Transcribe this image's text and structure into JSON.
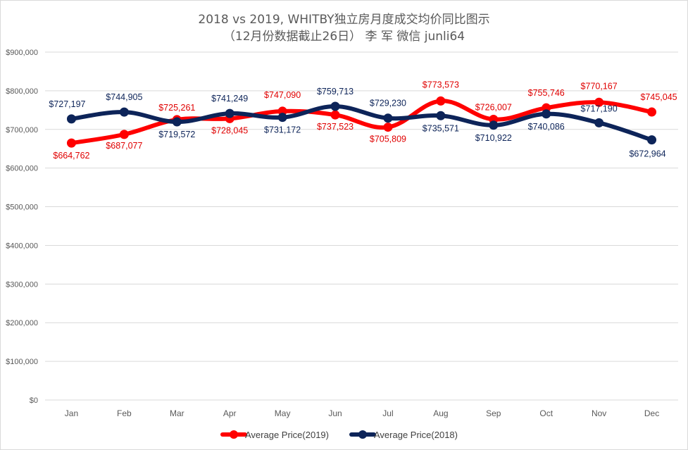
{
  "chart_data": {
    "type": "line",
    "title": "2018 vs 2019, WHITBY独立房月度成交均价同比图示",
    "subtitle": "（12月份数据截止26日） 李 军  微信 junli64",
    "categories": [
      "Jan",
      "Feb",
      "Mar",
      "Apr",
      "May",
      "Jun",
      "Jul",
      "Aug",
      "Sep",
      "Oct",
      "Nov",
      "Dec"
    ],
    "ylim": [
      0,
      900000
    ],
    "yticks": [
      0,
      100000,
      200000,
      300000,
      400000,
      500000,
      600000,
      700000,
      800000,
      900000
    ],
    "ytick_labels": [
      "$0",
      "$100,000",
      "$200,000",
      "$300,000",
      "$400,000",
      "$500,000",
      "$600,000",
      "$700,000",
      "$800,000",
      "$900,000"
    ],
    "grid": true,
    "legend_position": "bottom",
    "series": [
      {
        "name": "Average Price(2019)",
        "color": "#ff0000",
        "label_color": "#e00000",
        "values": [
          664762,
          687077,
          725261,
          728045,
          747090,
          737523,
          705809,
          773573,
          726007,
          755746,
          770167,
          745045
        ],
        "labels": [
          "$664,762",
          "$687,077",
          "$725,261",
          "$728,045",
          "$747,090",
          "$737,523",
          "$705,809",
          "$773,573",
          "$726,007",
          "$755,746",
          "$770,167",
          "$745,045"
        ]
      },
      {
        "name": "Average Price(2018)",
        "color": "#0d2459",
        "label_color": "#0d2459",
        "values": [
          727197,
          744905,
          719572,
          741249,
          731172,
          759713,
          729230,
          735571,
          710922,
          740086,
          717190,
          672964
        ],
        "labels": [
          "$727,197",
          "$744,905",
          "$719,572",
          "$741,249",
          "$731,172",
          "$759,713",
          "$729,230",
          "$735,571",
          "$710,922",
          "$740,086",
          "$717,190",
          "$672,964"
        ]
      }
    ]
  }
}
